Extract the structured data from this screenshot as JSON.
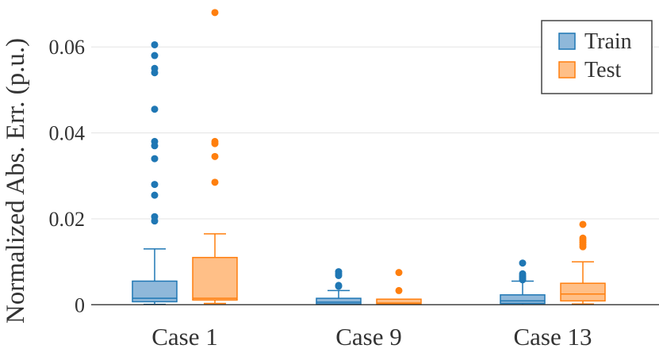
{
  "chart_data": {
    "type": "box",
    "ylabel": "Normalized Abs. Err. (p.u.)",
    "xlabel": "",
    "categories": [
      "Case 1",
      "Case 9",
      "Case 13"
    ],
    "ylim": [
      -0.0005,
      0.07
    ],
    "yticks": [
      0,
      0.02,
      0.04,
      0.06
    ],
    "ytick_labels": [
      "0",
      "0.02",
      "0.04",
      "0.06"
    ],
    "grid": true,
    "legend_position": "top-right",
    "series": [
      {
        "name": "Train",
        "color": "#1f77b4",
        "fill": "#8fb8da",
        "boxes": [
          {
            "lower_whisker": 0.0001,
            "q1": 0.0007,
            "median": 0.0015,
            "q3": 0.0055,
            "upper_whisker": 0.013,
            "outliers": [
              0.0605,
              0.058,
              0.055,
              0.054,
              0.0455,
              0.038,
              0.037,
              0.034,
              0.028,
              0.0255,
              0.0205,
              0.0195
            ]
          },
          {
            "lower_whisker": 0.0,
            "q1": 0.0002,
            "median": 0.0006,
            "q3": 0.0015,
            "upper_whisker": 0.0033,
            "outliers": [
              0.0077,
              0.0072,
              0.0068,
              0.0045,
              0.0043
            ]
          },
          {
            "lower_whisker": 0.0,
            "q1": 0.0003,
            "median": 0.0009,
            "q3": 0.0023,
            "upper_whisker": 0.0055,
            "outliers": [
              0.0097,
              0.0072,
              0.0068,
              0.0064,
              0.006,
              0.0058
            ]
          }
        ]
      },
      {
        "name": "Test",
        "color": "#ff7f0e",
        "fill": "#ffbf87",
        "boxes": [
          {
            "lower_whisker": 0.0003,
            "q1": 0.0011,
            "median": 0.0015,
            "q3": 0.011,
            "upper_whisker": 0.0165,
            "outliers": [
              0.068,
              0.038,
              0.0375,
              0.0345,
              0.0285
            ]
          },
          {
            "lower_whisker": 0.0,
            "q1": 0.0002,
            "median": 0.0004,
            "q3": 0.0013,
            "upper_whisker": 0.0013,
            "outliers": [
              0.0075,
              0.0033
            ]
          },
          {
            "lower_whisker": 0.0002,
            "q1": 0.0009,
            "median": 0.0025,
            "q3": 0.005,
            "upper_whisker": 0.01,
            "outliers": [
              0.0187,
              0.0155,
              0.015,
              0.0145,
              0.014,
              0.0135
            ]
          }
        ]
      }
    ]
  }
}
